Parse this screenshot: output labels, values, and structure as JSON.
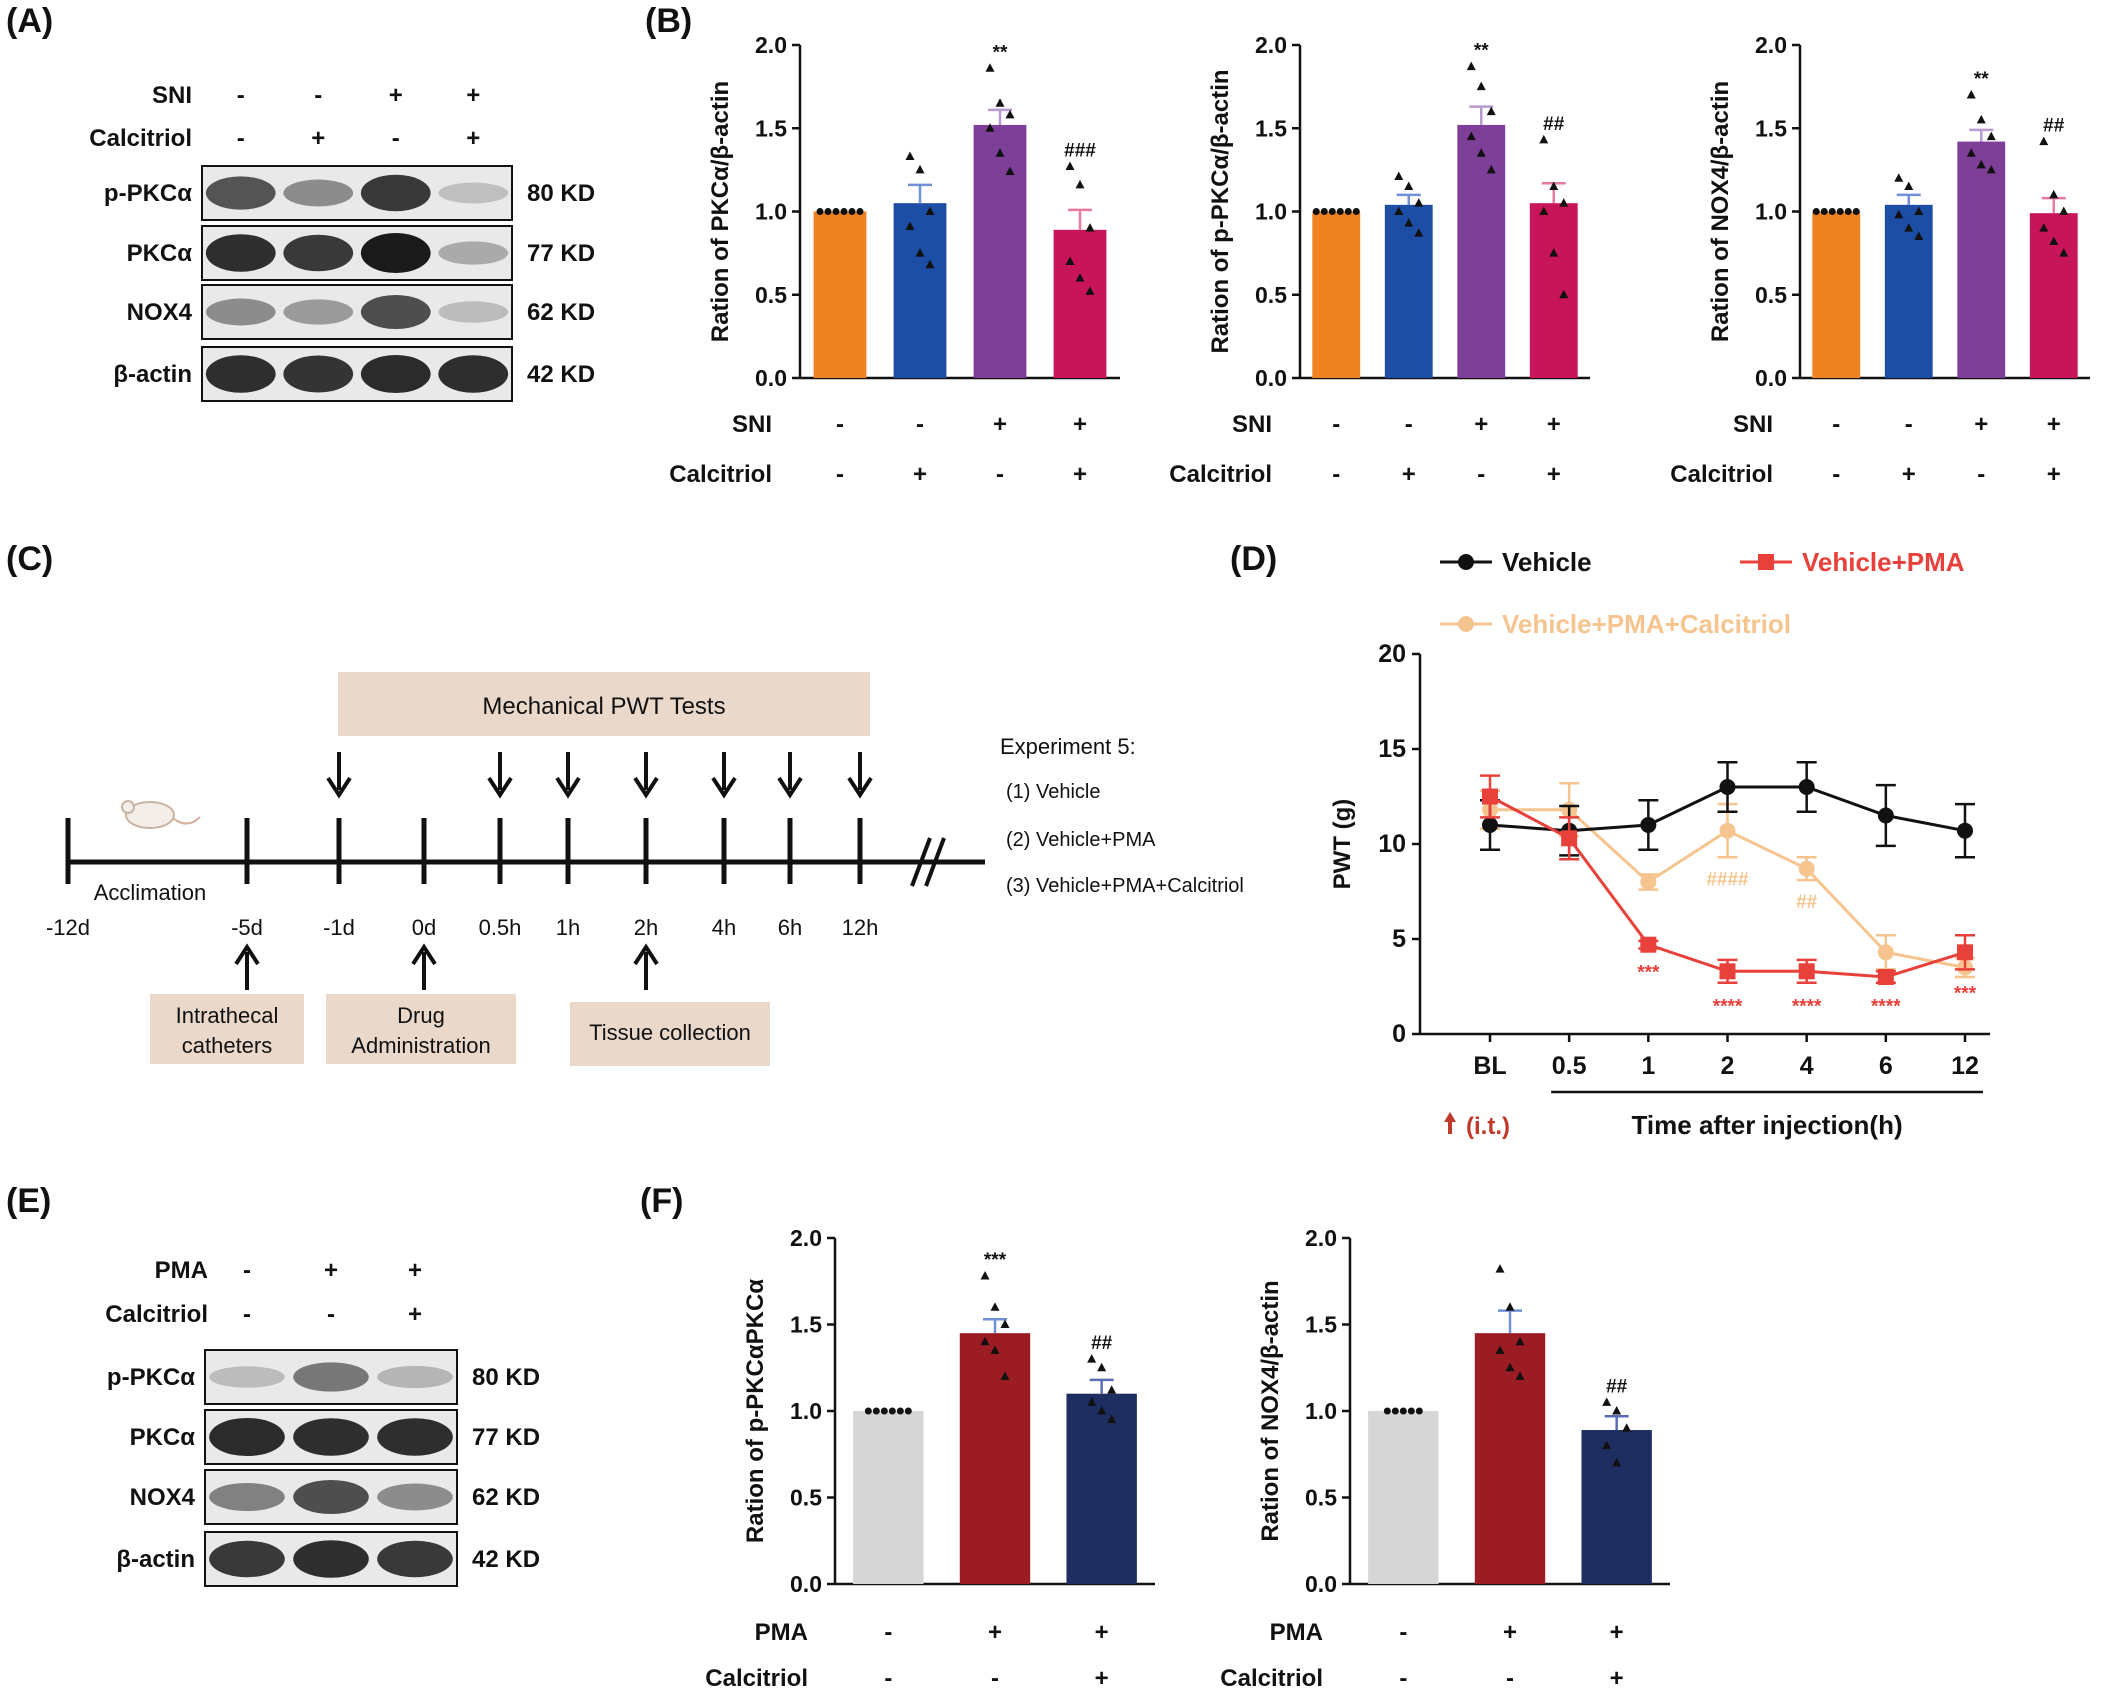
{
  "colors": {
    "orange": "#EE8220",
    "blue": "#1C4EA6",
    "purple": "#7E3F98",
    "crimson": "#C8155A",
    "grey": "#D6D6D6",
    "darkred": "#9B1C22",
    "navy": "#1F2E61",
    "black": "#111111",
    "red": "#E8403A",
    "peach": "#F6C48E",
    "boxfill": "#EAD9CB"
  },
  "panels": {
    "A": "(A)",
    "B": "(B)",
    "C": "(C)",
    "D": "(D)",
    "E": "(E)",
    "F": "(F)"
  },
  "blotA": {
    "conditions": [
      {
        "name": "SNI",
        "signs": [
          "-",
          "-",
          "+",
          "+"
        ]
      },
      {
        "name": "Calcitriol",
        "signs": [
          "-",
          "+",
          "-",
          "+"
        ]
      }
    ],
    "rows": [
      {
        "label": "p-PKCα",
        "kd": "80 KD",
        "bands": [
          0.72,
          0.45,
          0.85,
          0.2
        ]
      },
      {
        "label": "PKCα",
        "kd": "77 KD",
        "bands": [
          0.9,
          0.85,
          1.0,
          0.3
        ]
      },
      {
        "label": "NOX4",
        "kd": "62 KD",
        "bands": [
          0.45,
          0.38,
          0.75,
          0.22
        ]
      },
      {
        "label": "β-actin",
        "kd": "42 KD",
        "bands": [
          0.9,
          0.88,
          0.92,
          0.9
        ]
      }
    ]
  },
  "blotE": {
    "conditions": [
      {
        "name": "PMA",
        "signs": [
          "-",
          "+",
          "+"
        ]
      },
      {
        "name": "Calcitriol",
        "signs": [
          "-",
          "-",
          "+"
        ]
      }
    ],
    "rows": [
      {
        "label": "p-PKCα",
        "kd": "80 KD",
        "bands": [
          0.22,
          0.55,
          0.25
        ]
      },
      {
        "label": "PKCα",
        "kd": "77 KD",
        "bands": [
          0.92,
          0.9,
          0.9
        ]
      },
      {
        "label": "NOX4",
        "kd": "62 KD",
        "bands": [
          0.5,
          0.75,
          0.45
        ]
      },
      {
        "label": "β-actin",
        "kd": "42 KD",
        "bands": [
          0.85,
          0.9,
          0.85
        ]
      }
    ]
  },
  "timeline": {
    "box_title": "Mechanical PWT Tests",
    "days": [
      "-12d",
      "-5d",
      "-1d",
      "0d",
      "0.5h",
      "1h",
      "2h",
      "4h",
      "6h",
      "12h"
    ],
    "acclimation": "Acclimation",
    "events": [
      "Intrathecal catheters",
      "Drug Administration",
      "Tissue collection"
    ],
    "experiment_title": "Experiment 5:",
    "groups": [
      "(1) Vehicle",
      "(2) Vehicle+PMA",
      "(3) Vehicle+PMA+Calcitriol"
    ]
  },
  "chart_data": [
    {
      "type": "bar",
      "panel": "B",
      "ylabel": "Ration of PKCα/β-actin",
      "ylim": [
        0,
        2.0
      ],
      "yticks": [
        "0.0",
        "0.5",
        "1.0",
        "1.5",
        "2.0"
      ],
      "values": [
        1.0,
        1.05,
        1.52,
        0.89
      ],
      "errors": [
        0,
        0.11,
        0.09,
        0.12
      ],
      "points": [
        [
          1,
          1,
          1,
          1,
          1,
          1
        ],
        [
          1.33,
          1.25,
          1.0,
          0.91,
          0.75,
          0.68
        ],
        [
          1.86,
          1.65,
          1.58,
          1.5,
          1.35,
          1.24
        ],
        [
          1.27,
          1.16,
          0.9,
          0.7,
          0.6,
          0.52
        ]
      ],
      "annotations": [
        "",
        "",
        "**",
        "###"
      ],
      "bar_colors": [
        "orange",
        "blue",
        "purple",
        "crimson"
      ],
      "conditions": [
        {
          "name": "SNI",
          "signs": [
            "-",
            "-",
            "+",
            "+"
          ]
        },
        {
          "name": "Calcitriol",
          "signs": [
            "-",
            "+",
            "-",
            "+"
          ]
        }
      ]
    },
    {
      "type": "bar",
      "panel": "B",
      "ylabel": "Ration of p-PKCα/β-actin",
      "ylim": [
        0,
        2.0
      ],
      "yticks": [
        "0.0",
        "0.5",
        "1.0",
        "1.5",
        "2.0"
      ],
      "values": [
        1.0,
        1.04,
        1.52,
        1.05
      ],
      "errors": [
        0,
        0.06,
        0.11,
        0.12
      ],
      "points": [
        [
          1,
          1,
          1,
          1,
          1,
          1
        ],
        [
          1.21,
          1.15,
          1.05,
          1.0,
          0.93,
          0.87
        ],
        [
          1.87,
          1.75,
          1.6,
          1.45,
          1.35,
          1.25
        ],
        [
          1.43,
          1.15,
          1.05,
          1.0,
          0.75,
          0.5
        ]
      ],
      "annotations": [
        "",
        "",
        "**",
        "##"
      ],
      "bar_colors": [
        "orange",
        "blue",
        "purple",
        "crimson"
      ],
      "conditions": [
        {
          "name": "SNI",
          "signs": [
            "-",
            "-",
            "+",
            "+"
          ]
        },
        {
          "name": "Calcitriol",
          "signs": [
            "-",
            "+",
            "-",
            "+"
          ]
        }
      ]
    },
    {
      "type": "bar",
      "panel": "B",
      "ylabel": "Ration of NOX4/β-actin",
      "ylim": [
        0,
        2.0
      ],
      "yticks": [
        "0.0",
        "0.5",
        "1.0",
        "1.5",
        "2.0"
      ],
      "values": [
        1.0,
        1.04,
        1.42,
        0.99
      ],
      "errors": [
        0,
        0.06,
        0.07,
        0.09
      ],
      "points": [
        [
          1,
          1,
          1,
          1,
          1,
          1
        ],
        [
          1.2,
          1.15,
          1.0,
          0.98,
          0.9,
          0.85
        ],
        [
          1.7,
          1.55,
          1.45,
          1.35,
          1.28,
          1.25
        ],
        [
          1.42,
          1.1,
          1.0,
          0.9,
          0.82,
          0.75
        ]
      ],
      "annotations": [
        "",
        "",
        "**",
        "##"
      ],
      "bar_colors": [
        "orange",
        "blue",
        "purple",
        "crimson"
      ],
      "conditions": [
        {
          "name": "SNI",
          "signs": [
            "-",
            "-",
            "+",
            "+"
          ]
        },
        {
          "name": "Calcitriol",
          "signs": [
            "-",
            "+",
            "-",
            "+"
          ]
        }
      ]
    },
    {
      "type": "line",
      "panel": "D",
      "ylabel": "PWT (g)",
      "xlabel": "Time after injection(h)",
      "ylim": [
        0,
        20
      ],
      "yticks": [
        "0",
        "5",
        "10",
        "15",
        "20"
      ],
      "categories": [
        "BL",
        "0.5",
        "1",
        "2",
        "4",
        "6",
        "12"
      ],
      "injection_marker": "(i.t.)",
      "series": [
        {
          "name": "Vehicle",
          "color": "black",
          "marker": "circle",
          "values": [
            11.0,
            10.7,
            11.0,
            13.0,
            13.0,
            11.5,
            10.7
          ],
          "errors": [
            1.3,
            1.3,
            1.3,
            1.3,
            1.3,
            1.6,
            1.4
          ],
          "annotations": [
            "",
            "",
            "",
            "",
            "",
            "",
            ""
          ]
        },
        {
          "name": "Vehicle+PMA",
          "color": "red",
          "marker": "square",
          "values": [
            12.5,
            10.3,
            4.7,
            3.3,
            3.3,
            3.0,
            4.3
          ],
          "errors": [
            1.1,
            1.1,
            0.2,
            0.6,
            0.6,
            0.3,
            0.9
          ],
          "annotations": [
            "",
            "",
            "***",
            "****",
            "****",
            "****",
            "***"
          ]
        },
        {
          "name": "Vehicle+PMA+Calcitriol",
          "color": "peach",
          "marker": "circle",
          "values": [
            11.8,
            11.8,
            8.0,
            10.7,
            8.7,
            4.3,
            3.5
          ],
          "errors": [
            1.0,
            1.4,
            0.4,
            1.4,
            0.6,
            0.9,
            0.5
          ],
          "annotations": [
            "",
            "",
            "",
            "####",
            "##",
            "",
            ""
          ]
        }
      ]
    },
    {
      "type": "bar",
      "panel": "F",
      "ylabel": "Ration of p-PKCαPKCα",
      "ylim": [
        0,
        2.0
      ],
      "yticks": [
        "0.0",
        "0.5",
        "1.0",
        "1.5",
        "2.0"
      ],
      "values": [
        1.0,
        1.45,
        1.1
      ],
      "errors": [
        0,
        0.08,
        0.08
      ],
      "points": [
        [
          1,
          1,
          1,
          1,
          1,
          1
        ],
        [
          1.78,
          1.6,
          1.5,
          1.4,
          1.35,
          1.2
        ],
        [
          1.3,
          1.25,
          1.12,
          1.05,
          1.0,
          0.95
        ]
      ],
      "annotations": [
        "",
        "***",
        "##"
      ],
      "bar_colors": [
        "grey",
        "darkred",
        "navy"
      ],
      "conditions": [
        {
          "name": "PMA",
          "signs": [
            "-",
            "+",
            "+"
          ]
        },
        {
          "name": "Calcitriol",
          "signs": [
            "-",
            "-",
            "+"
          ]
        }
      ]
    },
    {
      "type": "bar",
      "panel": "F",
      "ylabel": "Ration of NOX4/β-actin",
      "ylim": [
        0,
        2.0
      ],
      "yticks": [
        "0.0",
        "0.5",
        "1.0",
        "1.5",
        "2.0"
      ],
      "values": [
        1.0,
        1.45,
        0.89
      ],
      "errors": [
        0,
        0.13,
        0.08
      ],
      "points": [
        [
          1,
          1,
          1,
          1,
          1
        ],
        [
          1.82,
          1.6,
          1.4,
          1.35,
          1.25,
          1.2
        ],
        [
          1.05,
          1.0,
          0.9,
          0.8,
          0.7
        ]
      ],
      "annotations": [
        "",
        "",
        "##"
      ],
      "bar_colors": [
        "grey",
        "darkred",
        "navy"
      ],
      "conditions": [
        {
          "name": "PMA",
          "signs": [
            "-",
            "+",
            "+"
          ]
        },
        {
          "name": "Calcitriol",
          "signs": [
            "-",
            "-",
            "+"
          ]
        }
      ]
    }
  ]
}
